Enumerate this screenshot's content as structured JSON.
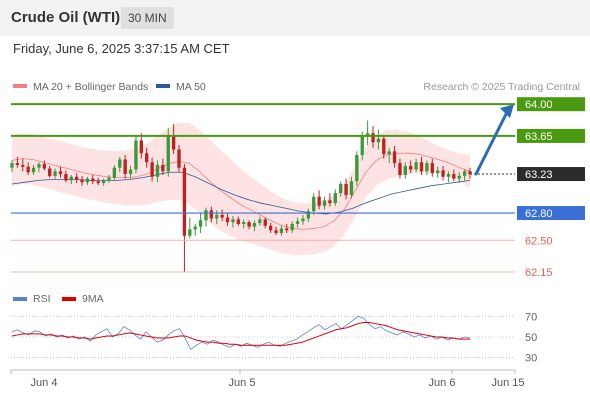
{
  "header": {
    "title": "Crude Oil (WTI)",
    "interval": "30 MIN",
    "datetime": "Friday, June 6, 2025 3:37:15 AM CET"
  },
  "legend": {
    "bollinger": {
      "label": "MA 20 + Bollinger Bands",
      "color": "#f08080"
    },
    "ma50": {
      "label": "MA 50",
      "color": "#2e5a9c"
    },
    "rsi": {
      "label": "RSI",
      "color": "#5b7fd6"
    },
    "rsi_ma": {
      "label": "9MA",
      "color": "#e00000"
    }
  },
  "credit": "Research © 2025 Trading Central",
  "colors": {
    "up": "#3a9a3a",
    "down": "#c02020",
    "resistance": "#4a9a10",
    "support": "#3a6fd8",
    "support2": "#e06060",
    "current": "#2c2c2c",
    "forecast": "#2f6db3",
    "band_fill": "#fde3e3"
  },
  "chart_data": [
    {
      "type": "candlestick",
      "title": "Crude Oil (WTI)",
      "interval": "30 MIN",
      "ylim": [
        62.0,
        64.1
      ],
      "x_ticks": [
        "Jun 4",
        "Jun 5",
        "Jun 6",
        "Jun 15"
      ],
      "levels": [
        {
          "value": 64.0,
          "label": "64.00",
          "kind": "resistance"
        },
        {
          "value": 63.65,
          "label": "63.65",
          "kind": "resistance"
        },
        {
          "value": 63.23,
          "label": "63.23",
          "kind": "current"
        },
        {
          "value": 62.8,
          "label": "62.80",
          "kind": "support"
        },
        {
          "value": 62.5,
          "label": "62.50",
          "kind": "support2"
        },
        {
          "value": 62.15,
          "label": "62.15",
          "kind": "support2"
        }
      ],
      "forecast": {
        "from": 63.23,
        "to": 64.0,
        "direction": "up"
      },
      "series": [
        {
          "name": "MA 20 + Bollinger Bands",
          "values": [
            63.38,
            63.4,
            63.39,
            63.36,
            63.33,
            63.3,
            63.27,
            63.24,
            63.22,
            63.2,
            63.19,
            63.19,
            63.2,
            63.23,
            63.29,
            63.34,
            63.37,
            63.35,
            63.26,
            63.15,
            63.05,
            62.97,
            62.89,
            62.83,
            62.77,
            62.71,
            62.66,
            62.63,
            62.62,
            62.63,
            62.65,
            62.72,
            62.85,
            63.05,
            63.25,
            63.38,
            63.44,
            63.46,
            63.46,
            63.45,
            63.42,
            63.39,
            63.35,
            63.3,
            63.26
          ]
        },
        {
          "name": "MA 50",
          "values": [
            63.12,
            63.14,
            63.16,
            63.17,
            63.17,
            63.17,
            63.16,
            63.16,
            63.16,
            63.17,
            63.19,
            63.22,
            63.25,
            63.25,
            63.2,
            63.13,
            63.06,
            63.0,
            62.95,
            62.91,
            62.88,
            62.85,
            62.82,
            62.8,
            62.79,
            62.81,
            62.85,
            62.91,
            62.96,
            63.01,
            63.04,
            63.07,
            63.1,
            63.12,
            63.14,
            63.16
          ]
        }
      ],
      "candles": [
        [
          63.3,
          63.38,
          63.25,
          63.35
        ],
        [
          63.35,
          63.42,
          63.3,
          63.33
        ],
        [
          63.33,
          63.4,
          63.26,
          63.31
        ],
        [
          63.31,
          63.36,
          63.22,
          63.25
        ],
        [
          63.25,
          63.33,
          63.22,
          63.3
        ],
        [
          63.3,
          63.36,
          63.25,
          63.34
        ],
        [
          63.34,
          63.38,
          63.27,
          63.29
        ],
        [
          63.29,
          63.32,
          63.19,
          63.21
        ],
        [
          63.21,
          63.29,
          63.18,
          63.26
        ],
        [
          63.26,
          63.31,
          63.19,
          63.23
        ],
        [
          63.23,
          63.27,
          63.14,
          63.16
        ],
        [
          63.16,
          63.22,
          63.12,
          63.2
        ],
        [
          63.2,
          63.24,
          63.13,
          63.17
        ],
        [
          63.17,
          63.21,
          63.1,
          63.14
        ],
        [
          63.14,
          63.2,
          63.11,
          63.18
        ],
        [
          63.18,
          63.22,
          63.12,
          63.15
        ],
        [
          63.15,
          63.19,
          63.11,
          63.13
        ],
        [
          63.13,
          63.18,
          63.1,
          63.16
        ],
        [
          63.16,
          63.22,
          63.13,
          63.19
        ],
        [
          63.19,
          63.33,
          63.16,
          63.3
        ],
        [
          63.3,
          63.42,
          63.25,
          63.39
        ],
        [
          63.39,
          63.44,
          63.18,
          63.23
        ],
        [
          63.23,
          63.32,
          63.18,
          63.28
        ],
        [
          63.28,
          63.66,
          63.24,
          63.6
        ],
        [
          63.6,
          63.68,
          63.4,
          63.46
        ],
        [
          63.46,
          63.52,
          63.3,
          63.36
        ],
        [
          63.36,
          63.41,
          63.15,
          63.2
        ],
        [
          63.2,
          63.38,
          63.14,
          63.33
        ],
        [
          63.33,
          63.4,
          63.22,
          63.26
        ],
        [
          63.26,
          63.74,
          63.2,
          63.65
        ],
        [
          63.65,
          63.78,
          63.45,
          63.5
        ],
        [
          63.5,
          63.55,
          63.25,
          63.3
        ],
        [
          63.3,
          63.34,
          62.15,
          62.55
        ],
        [
          62.55,
          62.75,
          62.52,
          62.62
        ],
        [
          62.62,
          62.68,
          62.55,
          62.65
        ],
        [
          62.65,
          62.8,
          62.58,
          62.72
        ],
        [
          62.72,
          62.86,
          62.65,
          62.83
        ],
        [
          62.83,
          62.87,
          62.7,
          62.74
        ],
        [
          62.74,
          62.83,
          62.68,
          62.78
        ],
        [
          62.78,
          62.84,
          62.71,
          62.75
        ],
        [
          62.75,
          62.8,
          62.66,
          62.7
        ],
        [
          62.7,
          62.77,
          62.64,
          62.73
        ],
        [
          62.73,
          62.76,
          62.66,
          62.68
        ],
        [
          62.68,
          62.73,
          62.63,
          62.7
        ],
        [
          62.7,
          62.72,
          62.62,
          62.65
        ],
        [
          62.65,
          62.72,
          62.6,
          62.69
        ],
        [
          62.69,
          62.76,
          62.66,
          62.73
        ],
        [
          62.73,
          62.75,
          62.63,
          62.66
        ],
        [
          62.66,
          62.69,
          62.58,
          62.61
        ],
        [
          62.61,
          62.65,
          62.56,
          62.58
        ],
        [
          62.58,
          62.66,
          62.55,
          62.63
        ],
        [
          62.63,
          62.68,
          62.58,
          62.61
        ],
        [
          62.61,
          62.71,
          62.58,
          62.68
        ],
        [
          62.68,
          62.75,
          62.64,
          62.71
        ],
        [
          62.71,
          62.78,
          62.67,
          62.74
        ],
        [
          62.74,
          62.85,
          62.7,
          62.82
        ],
        [
          62.82,
          63.02,
          62.78,
          62.98
        ],
        [
          62.98,
          63.05,
          62.84,
          62.88
        ],
        [
          62.88,
          62.98,
          62.84,
          62.94
        ],
        [
          62.94,
          63.02,
          62.87,
          62.91
        ],
        [
          62.91,
          63.06,
          62.88,
          63.02
        ],
        [
          63.02,
          63.15,
          62.98,
          63.12
        ],
        [
          63.12,
          63.18,
          62.95,
          63.0
        ],
        [
          63.0,
          63.2,
          62.96,
          63.15
        ],
        [
          63.15,
          63.48,
          63.1,
          63.44
        ],
        [
          63.44,
          63.7,
          63.38,
          63.65
        ],
        [
          63.65,
          63.82,
          63.55,
          63.68
        ],
        [
          63.68,
          63.76,
          63.52,
          63.58
        ],
        [
          63.58,
          63.72,
          63.5,
          63.62
        ],
        [
          63.62,
          63.66,
          63.4,
          63.45
        ],
        [
          63.45,
          63.52,
          63.35,
          63.48
        ],
        [
          63.48,
          63.54,
          63.3,
          63.35
        ],
        [
          63.35,
          63.4,
          63.18,
          63.22
        ],
        [
          63.22,
          63.36,
          63.18,
          63.32
        ],
        [
          63.32,
          63.38,
          63.24,
          63.28
        ],
        [
          63.28,
          63.4,
          63.25,
          63.36
        ],
        [
          63.36,
          63.42,
          63.22,
          63.26
        ],
        [
          63.26,
          63.38,
          63.22,
          63.35
        ],
        [
          63.35,
          63.4,
          63.2,
          63.24
        ],
        [
          63.24,
          63.31,
          63.19,
          63.27
        ],
        [
          63.27,
          63.32,
          63.16,
          63.2
        ],
        [
          63.2,
          63.26,
          63.14,
          63.23
        ],
        [
          63.23,
          63.28,
          63.15,
          63.18
        ],
        [
          63.18,
          63.25,
          63.13,
          63.21
        ],
        [
          63.21,
          63.28,
          63.16,
          63.26
        ],
        [
          63.26,
          63.3,
          63.18,
          63.23
        ]
      ]
    },
    {
      "type": "line",
      "title": "RSI",
      "ylim": [
        20,
        80
      ],
      "y_ticks": [
        70,
        50,
        30
      ],
      "series": [
        {
          "name": "RSI",
          "values": [
            55,
            57,
            54,
            52,
            56,
            55,
            51,
            53,
            50,
            52,
            49,
            51,
            48,
            50,
            46,
            52,
            55,
            58,
            50,
            53,
            60,
            57,
            52,
            48,
            55,
            50,
            45,
            47,
            52,
            56,
            58,
            49,
            38,
            42,
            45,
            43,
            47,
            45,
            42,
            40,
            43,
            41,
            44,
            42,
            40,
            43,
            45,
            42,
            41,
            44,
            46,
            48,
            52,
            55,
            59,
            62,
            57,
            60,
            63,
            58,
            62,
            66,
            70,
            68,
            62,
            58,
            60,
            56,
            54,
            52,
            55,
            53,
            50,
            52,
            49,
            51,
            48,
            50,
            47,
            49,
            48,
            50,
            49
          ]
        },
        {
          "name": "9MA",
          "values": [
            51,
            52,
            53,
            53,
            53,
            53,
            52,
            52,
            51,
            51,
            50,
            50,
            49,
            49,
            48,
            49,
            50,
            51,
            51,
            52,
            53,
            54,
            53,
            52,
            51,
            50,
            49,
            49,
            49,
            50,
            51,
            51,
            49,
            47,
            46,
            45,
            45,
            44,
            44,
            43,
            43,
            42,
            42,
            42,
            42,
            42,
            42,
            42,
            42,
            42,
            43,
            44,
            45,
            47,
            49,
            51,
            53,
            55,
            57,
            58,
            59,
            61,
            63,
            64,
            64,
            63,
            62,
            61,
            59,
            57,
            56,
            55,
            54,
            53,
            52,
            51,
            50,
            50,
            49,
            49,
            48,
            48,
            48
          ]
        }
      ]
    }
  ]
}
